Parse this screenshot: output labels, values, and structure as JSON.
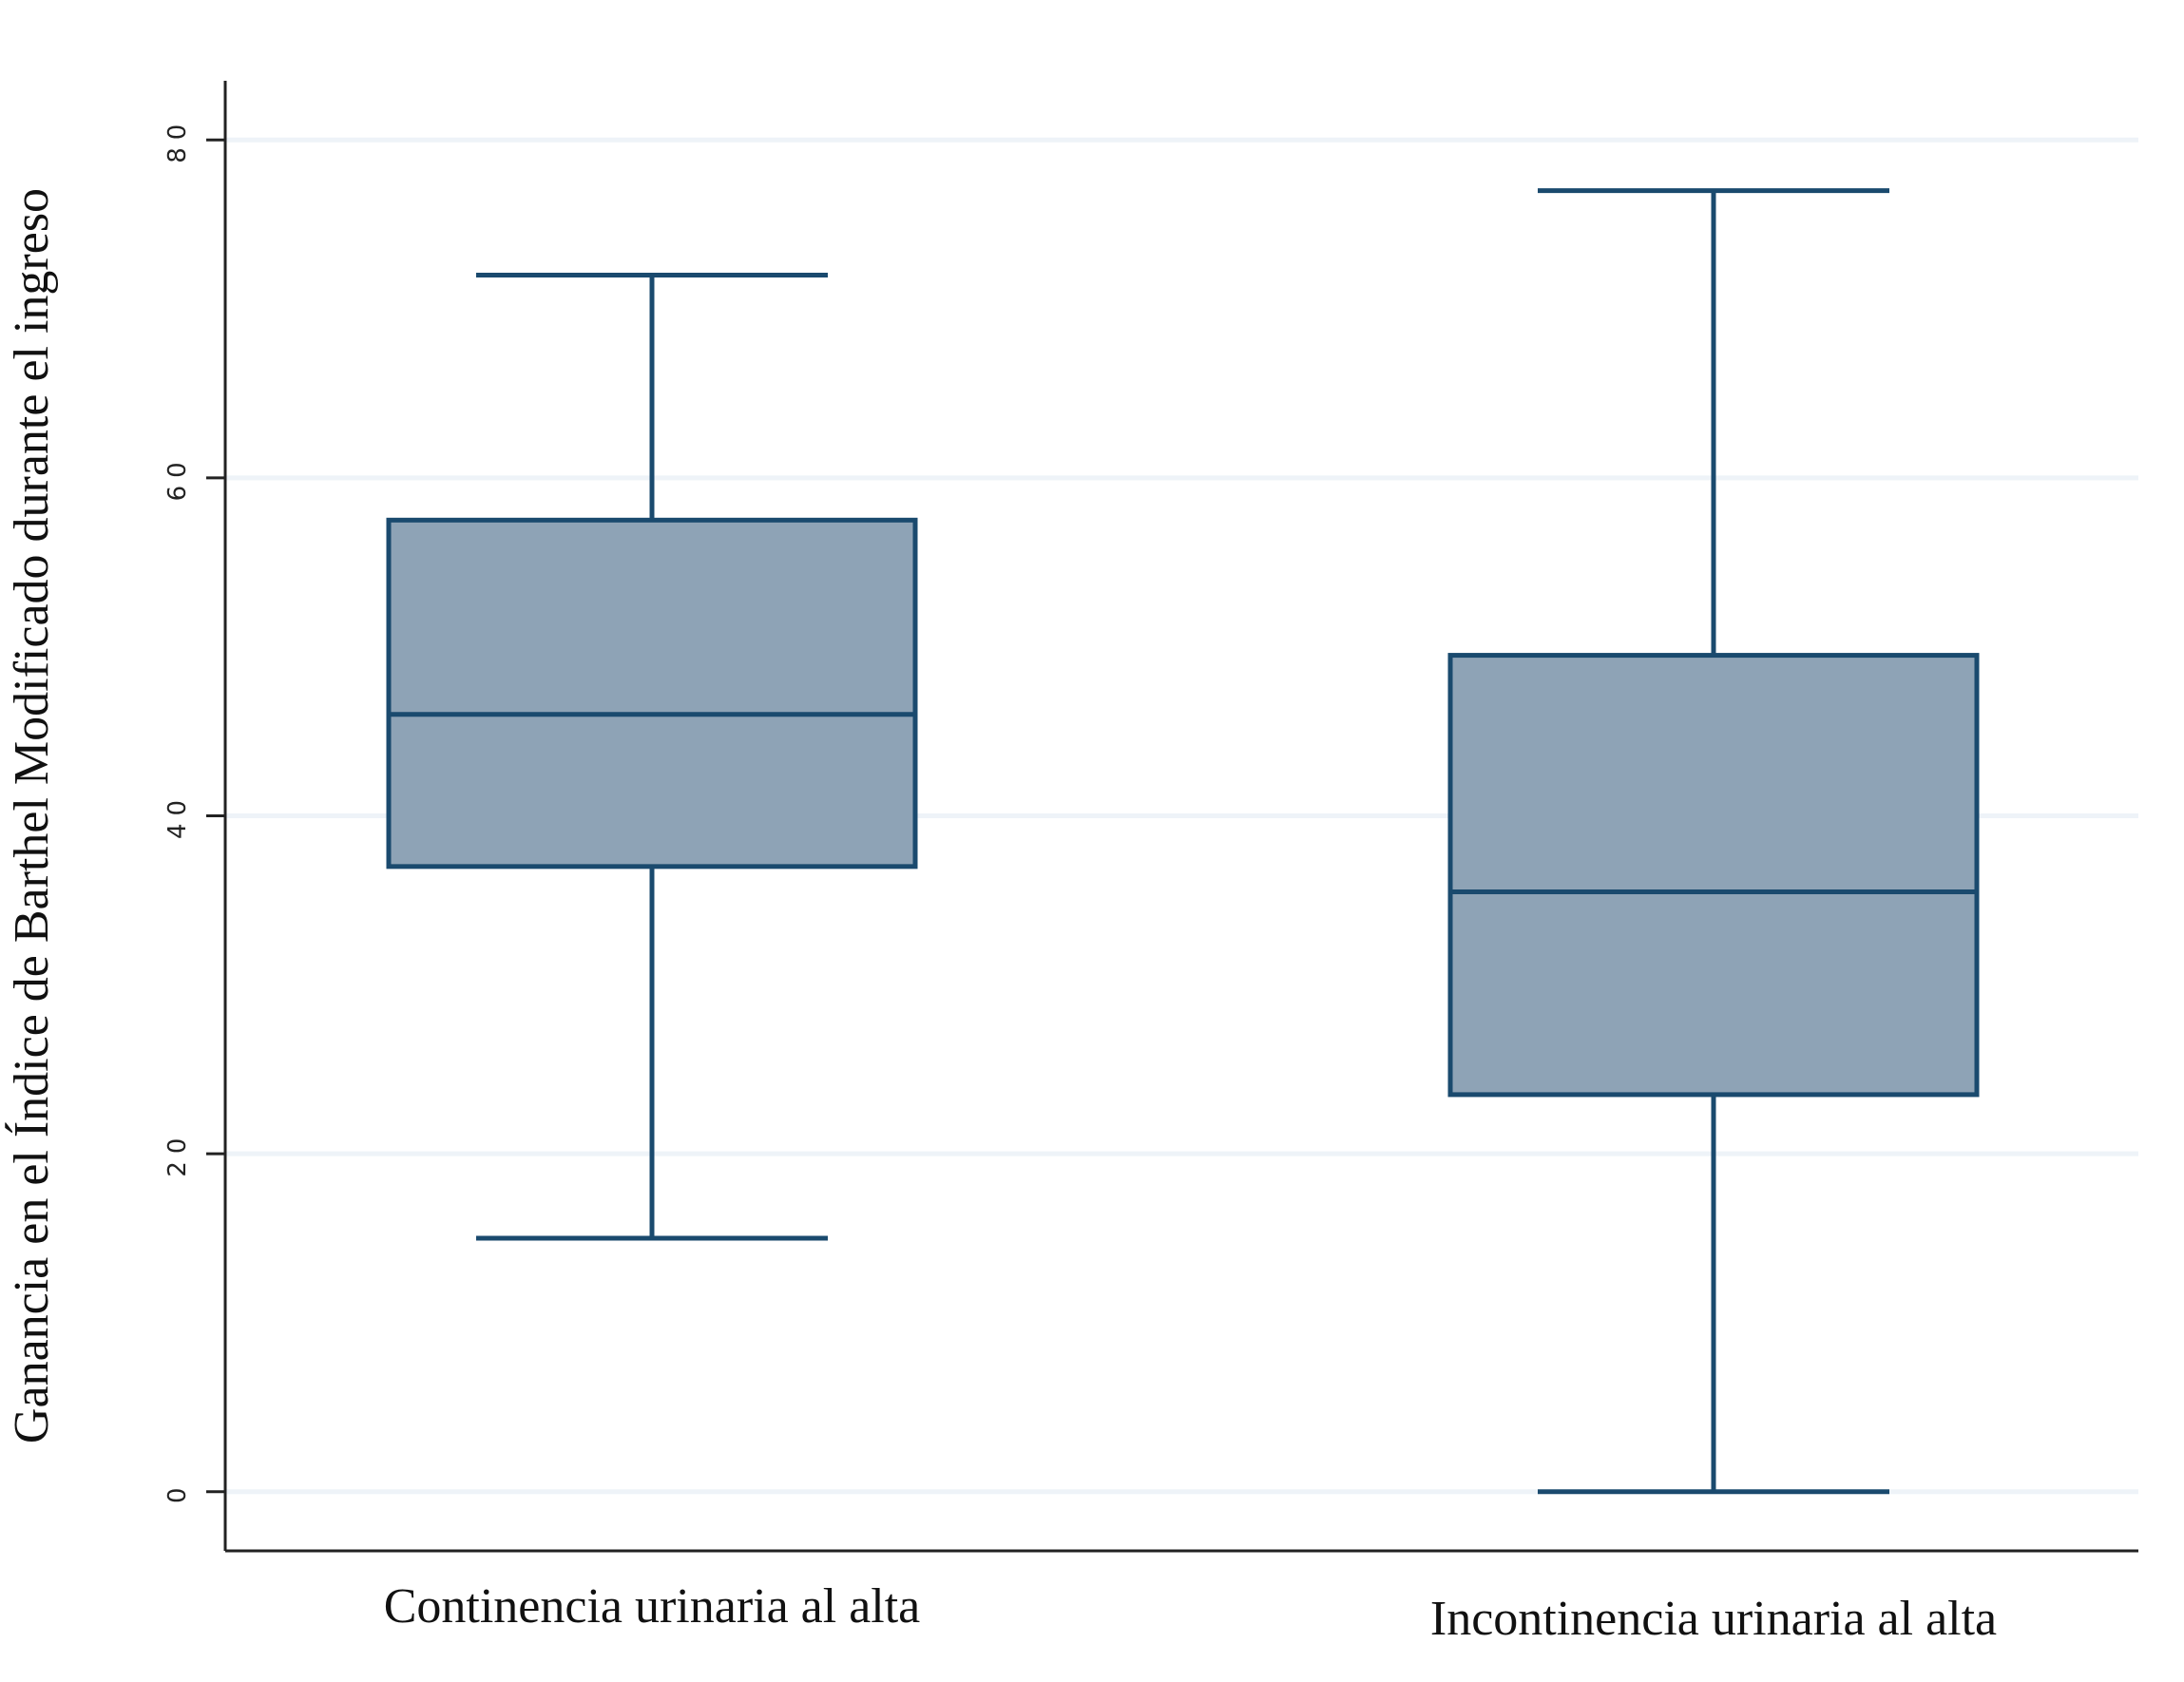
{
  "chart_data": {
    "type": "box",
    "title": "",
    "ylabel": "Ganancia en el Índice de Barthel Modificado durante el ingreso",
    "xlabel": "",
    "ylim": [
      -3.5,
      83.5
    ],
    "yticks": [
      0,
      20,
      40,
      60,
      80
    ],
    "yticklabels": [
      "0",
      "20",
      "40",
      "60",
      "80"
    ],
    "grid": true,
    "legend": "none",
    "colors": {
      "box_fill": "#8ea3b6",
      "box_stroke": "#1a4a6e",
      "grid": "#eef3f8",
      "axis": "#222222"
    },
    "categories": [
      "Continencia urinaria al alta",
      "Incontinencia urinaria al alta"
    ],
    "boxes": [
      {
        "category": "Continencia urinaria al alta",
        "whisker_low": 15,
        "q1": 37,
        "median": 46,
        "q3": 57.5,
        "whisker_high": 72
      },
      {
        "category": "Incontinencia urinaria al alta",
        "whisker_low": 0,
        "q1": 23.5,
        "median": 35.5,
        "q3": 49.5,
        "whisker_high": 77
      }
    ]
  }
}
